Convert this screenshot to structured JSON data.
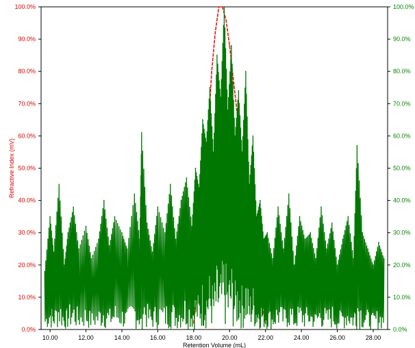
{
  "chart_data": {
    "type": "line",
    "title": "",
    "xlabel": "Retention Volume (mL)",
    "ylabel_left": "Refractive Index (mV)",
    "ylabel_right": "",
    "xlim": [
      9.5,
      28.8
    ],
    "ylim": [
      0,
      100
    ],
    "x_ticks": [
      "10.00",
      "12.00",
      "14.00",
      "16.00",
      "18.00",
      "20.00",
      "22.00",
      "24.00",
      "26.00",
      "28.00"
    ],
    "x_tick_values": [
      10,
      12,
      14,
      16,
      18,
      20,
      22,
      24,
      26,
      28
    ],
    "y_ticks_left": [
      "0.0%",
      "10.0%",
      "20.0%",
      "30.0%",
      "40.0%",
      "50.0%",
      "60.0%",
      "70.0%",
      "80.0%",
      "90.0%",
      "100.0%"
    ],
    "y_ticks_right": [
      "0.0%",
      "10.0%",
      "20.0%",
      "30.0%",
      "40.0%",
      "50.0%",
      "60.0%",
      "70.0%",
      "80.0%",
      "90.0%",
      "100.0%"
    ],
    "y_tick_values": [
      0,
      10,
      20,
      30,
      40,
      50,
      60,
      70,
      80,
      90,
      100
    ],
    "grid": false,
    "colors": {
      "refractive_index": "#ee1111",
      "second_detector": "#007700",
      "left_axis": "#dd0000",
      "right_axis": "#008800"
    },
    "series": [
      {
        "name": "Refractive Index (mV)",
        "color": "#ee1111",
        "x": [
          18.0,
          18.4,
          18.8,
          19.0,
          19.2,
          19.4,
          19.6,
          19.8,
          20.0,
          20.2,
          20.4,
          20.6,
          20.8,
          21.0,
          21.2,
          21.4,
          21.6,
          21.8,
          22.0
        ],
        "values": [
          2,
          20,
          60,
          80,
          92,
          100,
          100,
          96,
          88,
          78,
          68,
          58,
          48,
          38,
          29,
          21,
          14,
          8,
          2
        ]
      },
      {
        "name": "",
        "color": "#007700",
        "x": [
          9.7,
          10.0,
          10.2,
          10.5,
          10.8,
          11.0,
          11.3,
          11.6,
          12.0,
          12.3,
          12.7,
          13.0,
          13.3,
          13.6,
          14.0,
          14.3,
          14.7,
          15.0,
          15.1,
          15.4,
          15.7,
          16.0,
          16.4,
          16.7,
          17.0,
          17.3,
          17.6,
          17.9,
          18.1,
          18.3,
          18.5,
          18.7,
          18.9,
          19.1,
          19.3,
          19.5,
          19.7,
          19.9,
          20.1,
          20.3,
          20.5,
          20.7,
          20.9,
          21.1,
          21.3,
          21.5,
          21.7,
          21.9,
          22.1,
          22.4,
          22.7,
          23.0,
          23.3,
          23.6,
          23.9,
          24.2,
          24.5,
          24.8,
          25.1,
          25.4,
          25.7,
          26.0,
          26.3,
          26.6,
          26.9,
          27.1,
          27.4,
          27.7,
          28.0,
          28.3,
          28.6
        ],
        "values": [
          18,
          35,
          24,
          45,
          20,
          30,
          38,
          25,
          32,
          22,
          28,
          40,
          26,
          35,
          30,
          25,
          42,
          28,
          61,
          33,
          24,
          38,
          30,
          45,
          28,
          40,
          47,
          32,
          50,
          44,
          65,
          58,
          75,
          55,
          85,
          72,
          100,
          68,
          88,
          60,
          74,
          55,
          80,
          45,
          60,
          35,
          40,
          28,
          30,
          22,
          38,
          25,
          42,
          20,
          35,
          28,
          30,
          22,
          38,
          25,
          33,
          20,
          28,
          35,
          22,
          57,
          30,
          25,
          20,
          27,
          22
        ]
      }
    ]
  }
}
